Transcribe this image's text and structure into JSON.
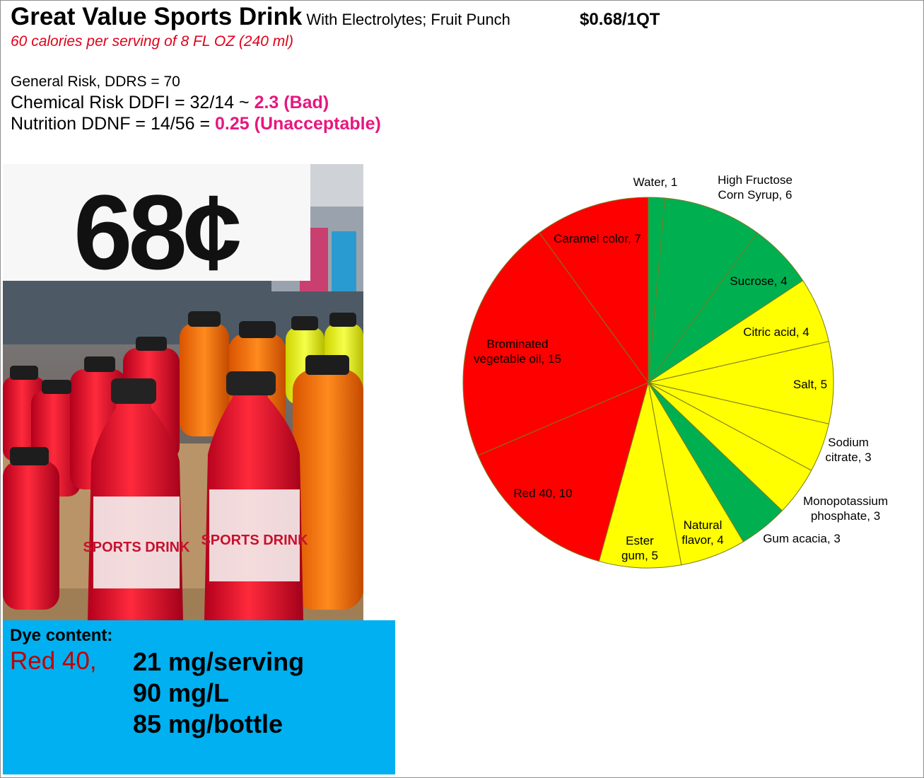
{
  "header": {
    "title": "Great Value Sports Drink",
    "subtitle": "With Electrolytes; Fruit Punch",
    "price": "$0.68/1QT",
    "calories": "60 calories per serving of 8 FL OZ (240 ml)"
  },
  "risk": {
    "general": "General Risk,  DDRS = 70",
    "chemical_prefix": "Chemical Risk DDFI = 32/14 ~ ",
    "chemical_value": "2.3 (Bad)",
    "nutrition_prefix": "Nutrition DDNF = 14/56 = ",
    "nutrition_value": "0.25 (Unacceptable)"
  },
  "photo": {
    "sign_text": "68¢",
    "bottle_label": "SPORTS DRINK"
  },
  "dye": {
    "heading": "Dye content:",
    "name": "Red 40,",
    "per_serving": "21 mg/serving",
    "per_liter": "90 mg/L",
    "per_bottle": "85 mg/bottle"
  },
  "colors": {
    "green": "#00b050",
    "yellow": "#ffff00",
    "red": "#ff0000",
    "accent_pink": "#e6177f",
    "calorie_red": "#e0001a",
    "dye_box": "#00b0f0",
    "dye_red": "#c00000"
  },
  "chart_data": {
    "type": "pie",
    "slices": [
      {
        "label": "Water",
        "value": 1,
        "display": [
          "Water, 1"
        ],
        "color": "#00b050"
      },
      {
        "label": "High Fructose Corn Syrup",
        "value": 6,
        "display": [
          "High Fructose",
          "Corn Syrup, 6"
        ],
        "color": "#00b050"
      },
      {
        "label": "Sucrose",
        "value": 4,
        "display": [
          "Sucrose, 4"
        ],
        "color": "#00b050"
      },
      {
        "label": "Citric acid",
        "value": 4,
        "display": [
          "Citric acid, 4"
        ],
        "color": "#ffff00"
      },
      {
        "label": "Salt",
        "value": 5,
        "display": [
          "Salt, 5"
        ],
        "color": "#ffff00"
      },
      {
        "label": "Sodium citrate",
        "value": 3,
        "display": [
          "Sodium",
          "citrate, 3"
        ],
        "color": "#ffff00"
      },
      {
        "label": "Monopotassium phosphate",
        "value": 3,
        "display": [
          "Monopotassium",
          "phosphate, 3"
        ],
        "color": "#ffff00"
      },
      {
        "label": "Gum acacia",
        "value": 3,
        "display": [
          "Gum acacia, 3"
        ],
        "color": "#00b050"
      },
      {
        "label": "Natural flavor",
        "value": 4,
        "display": [
          "Natural",
          "flavor, 4"
        ],
        "color": "#ffff00"
      },
      {
        "label": "Ester gum",
        "value": 5,
        "display": [
          "Ester",
          "gum, 5"
        ],
        "color": "#ffff00"
      },
      {
        "label": "Red 40",
        "value": 10,
        "display": [
          "Red 40, 10"
        ],
        "color": "#ff0000"
      },
      {
        "label": "Brominated vegetable oil",
        "value": 15,
        "display": [
          "Brominated",
          "vegetable oil, 15"
        ],
        "color": "#ff0000"
      },
      {
        "label": "Caramel color",
        "value": 7,
        "display": [
          "Caramel color, 7"
        ],
        "color": "#ff0000"
      }
    ]
  }
}
